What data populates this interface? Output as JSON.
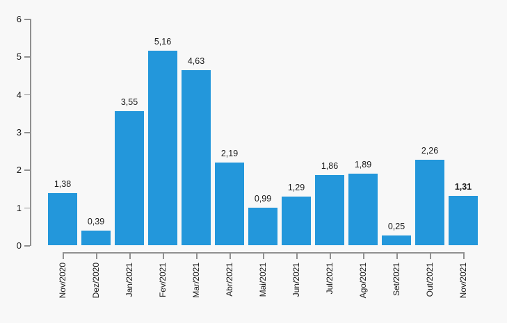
{
  "chart_data": {
    "type": "bar",
    "title": "",
    "xlabel": "",
    "ylabel": "",
    "categories": [
      "Nov/2020",
      "Dez/2020",
      "Jan/2021",
      "Fev/2021",
      "Mar/2021",
      "Abr/2021",
      "Mai/2021",
      "Jun/2021",
      "Jul/2021",
      "Ago/2021",
      "Set/2021",
      "Out/2021",
      "Nov/2021"
    ],
    "values": [
      1.38,
      0.39,
      3.55,
      5.16,
      4.63,
      2.19,
      0.99,
      1.29,
      1.86,
      1.89,
      0.25,
      2.26,
      1.31
    ],
    "value_labels": [
      "1,38",
      "0,39",
      "3,55",
      "5,16",
      "4,63",
      "2,19",
      "0,99",
      "1,29",
      "1,86",
      "1,89",
      "0,25",
      "2,26",
      "1,31"
    ],
    "bold_value_label_index": 12,
    "y_ticks": [
      "0",
      "1",
      "2",
      "3",
      "4",
      "5",
      "6"
    ],
    "ylim": [
      0,
      6
    ],
    "grid": false,
    "legend": "none",
    "bar_color": "#2397DB",
    "axis_color": "#909090",
    "text_color": "#1A1A1A",
    "background_color": "#F8F8F8"
  }
}
